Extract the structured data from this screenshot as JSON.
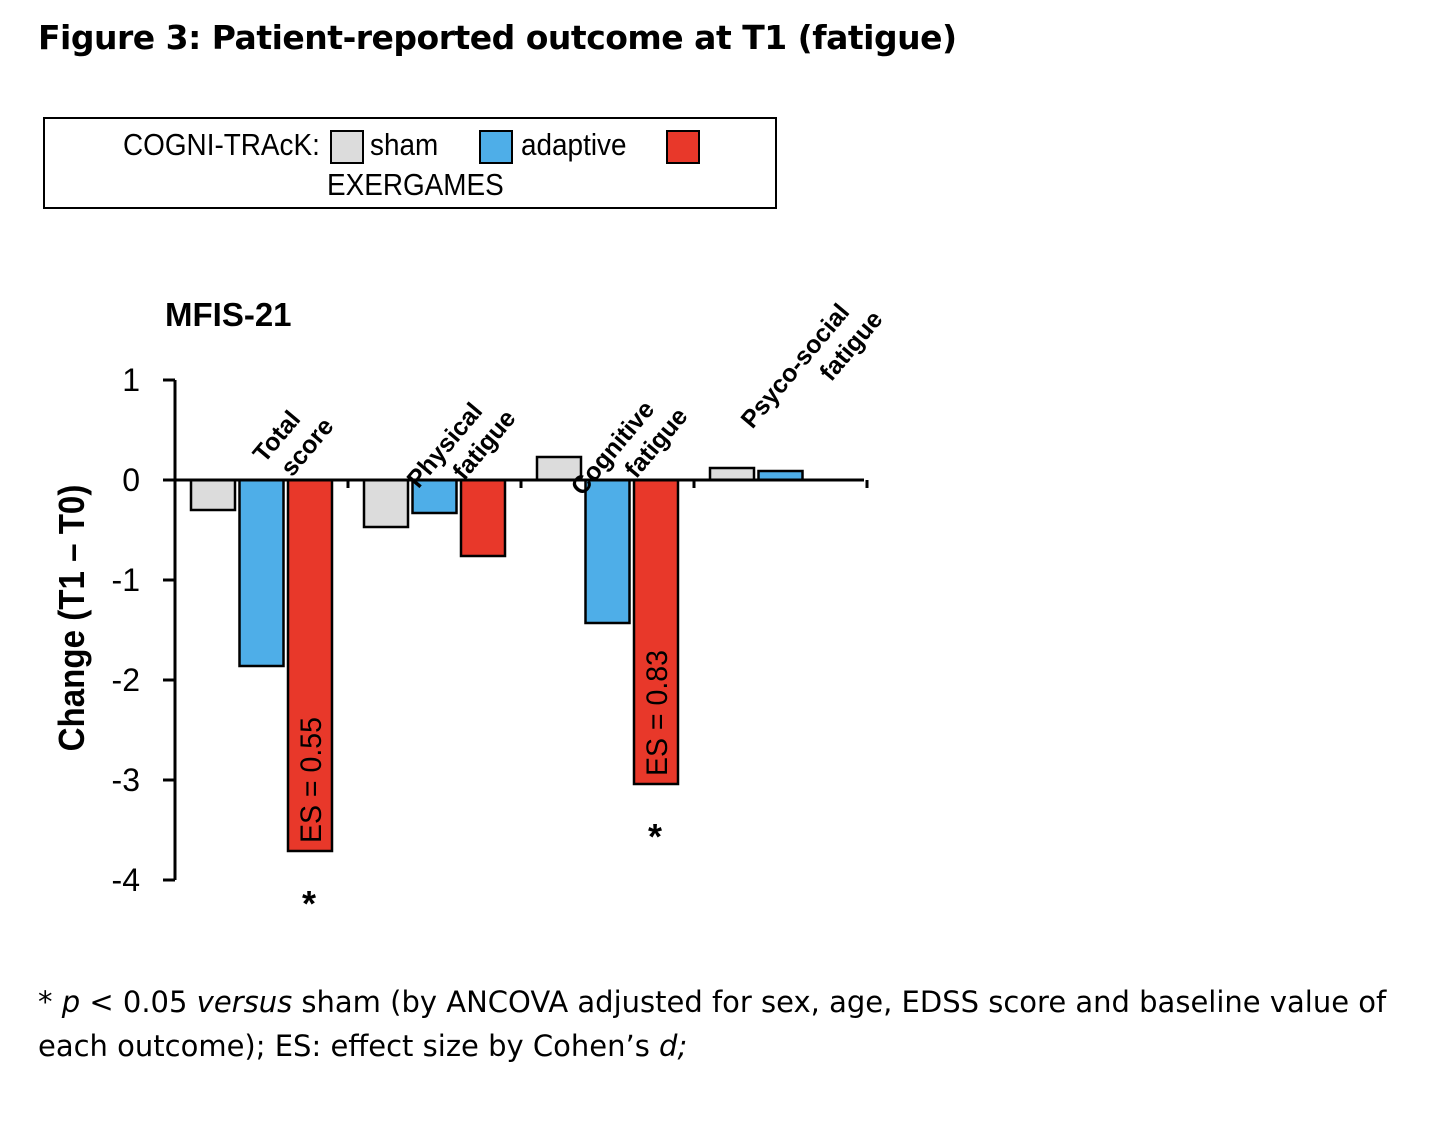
{
  "figure_title": "Figure 3: Patient-reported outcome at T1 (fatigue)",
  "legend": {
    "prefix": "COGNI-TRAcK:",
    "entries": [
      {
        "label": "sham",
        "color": "#dcdcdc"
      },
      {
        "label": "adaptive",
        "color": "#4eaee8"
      },
      {
        "label": "EXERGAMES",
        "color": "#e8382a"
      }
    ]
  },
  "chart_data": {
    "type": "bar",
    "title": "MFIS-21",
    "ylabel": "Change (T1 – T0)",
    "xlabel": "",
    "ylim": [
      -4,
      1
    ],
    "yticks": [
      1,
      0,
      -1,
      -2,
      -3,
      -4
    ],
    "ytick_labels": [
      "1",
      "0",
      "-1",
      "-2",
      "-3",
      "-4"
    ],
    "categories": [
      [
        "Total",
        "score"
      ],
      [
        "Physical",
        "fatigue"
      ],
      [
        "Cognitive",
        "fatigue"
      ],
      [
        "Psyco-social",
        "fatigue"
      ]
    ],
    "series": [
      {
        "name": "sham",
        "color": "#dcdcdc",
        "values": [
          -0.3,
          -0.47,
          0.23,
          0.12
        ]
      },
      {
        "name": "adaptive",
        "color": "#4eaee8",
        "values": [
          -1.86,
          -0.33,
          -1.43,
          0.09
        ]
      },
      {
        "name": "EXERGAMES",
        "color": "#e8382a",
        "values": [
          -3.71,
          -0.76,
          -3.04,
          null
        ]
      }
    ],
    "annotations": [
      {
        "category": 0,
        "series": 2,
        "label": "ES = 0.55",
        "marker": "*"
      },
      {
        "category": 2,
        "series": 2,
        "label": "ES = 0.83",
        "marker": "*"
      }
    ]
  },
  "footnote": {
    "star": "*",
    "p": "p",
    "part1": " < 0.05 ",
    "versus": "versus",
    "part2": " sham (by ANCOVA adjusted for sex, age, EDSS score and baseline value of each outcome); ES: effect size by Cohen’s ",
    "d": "d;"
  }
}
